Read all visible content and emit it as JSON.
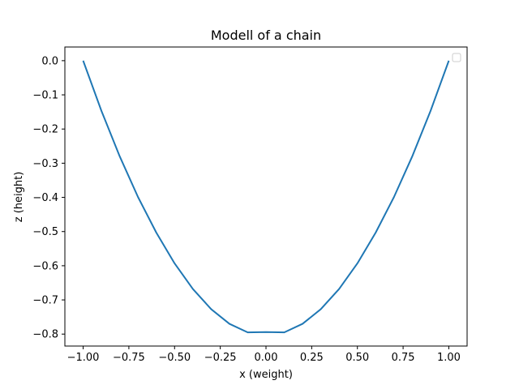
{
  "chart_data": {
    "type": "line",
    "title": "Modell of a chain",
    "xlabel": "x (weight)",
    "ylabel": "z (height)",
    "xlim": [
      -1.1,
      1.1
    ],
    "ylim": [
      -0.835,
      0.04
    ],
    "xticks": [
      -1.0,
      -0.75,
      -0.5,
      -0.25,
      0.0,
      0.25,
      0.5,
      0.75,
      1.0
    ],
    "xtick_labels": [
      "−1.00",
      "−0.75",
      "−0.50",
      "−0.25",
      "0.00",
      "0.25",
      "0.50",
      "0.75",
      "1.00"
    ],
    "yticks": [
      0.0,
      -0.1,
      -0.2,
      -0.3,
      -0.4,
      -0.5,
      -0.6,
      -0.7,
      -0.8
    ],
    "ytick_labels": [
      "0.0",
      "−0.1",
      "−0.2",
      "−0.3",
      "−0.4",
      "−0.5",
      "−0.6",
      "−0.7",
      "−0.8"
    ],
    "grid": false,
    "legend": {
      "position": "top-right",
      "entries": []
    },
    "series": [
      {
        "color": "#1f77b4",
        "x": [
          -1.0,
          -0.9,
          -0.8,
          -0.7,
          -0.6,
          -0.5,
          -0.4,
          -0.3,
          -0.2,
          -0.1,
          0.0,
          0.1,
          0.2,
          0.3,
          0.4,
          0.5,
          0.6,
          0.7,
          0.8,
          0.9,
          1.0
        ],
        "y": [
          0.0,
          -0.147,
          -0.28,
          -0.399,
          -0.503,
          -0.593,
          -0.668,
          -0.727,
          -0.77,
          -0.795,
          -0.794,
          -0.795,
          -0.77,
          -0.727,
          -0.668,
          -0.593,
          -0.503,
          -0.399,
          -0.28,
          -0.147,
          0.0
        ]
      }
    ]
  }
}
